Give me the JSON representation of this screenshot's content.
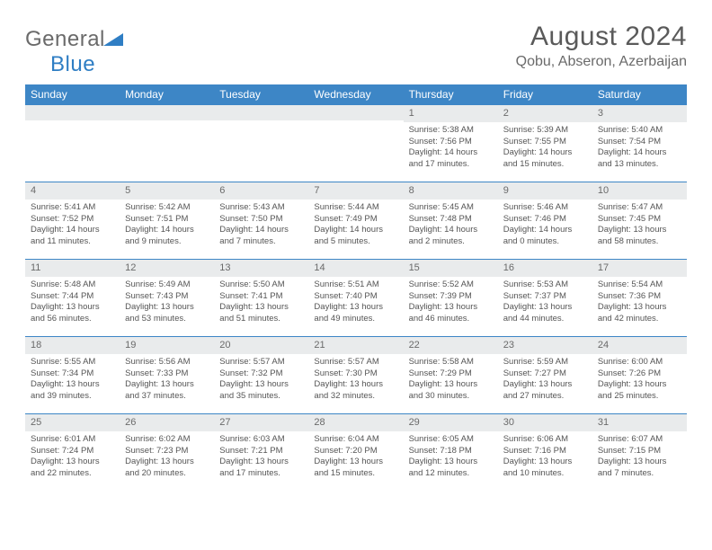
{
  "logo": {
    "text1": "General",
    "text2": "Blue"
  },
  "title": "August 2024",
  "location": "Qobu, Abseron, Azerbaijan",
  "colors": {
    "header_bg": "#3d86c6",
    "header_fg": "#ffffff",
    "daybar_bg": "#e9ebec",
    "text": "#555555",
    "logo_gray": "#6a6a6a",
    "logo_blue": "#2f7ec4"
  },
  "dayNames": [
    "Sunday",
    "Monday",
    "Tuesday",
    "Wednesday",
    "Thursday",
    "Friday",
    "Saturday"
  ],
  "weeks": [
    [
      null,
      null,
      null,
      null,
      {
        "n": "1",
        "sunrise": "5:38 AM",
        "sunset": "7:56 PM",
        "dl1": "Daylight: 14 hours",
        "dl2": "and 17 minutes."
      },
      {
        "n": "2",
        "sunrise": "5:39 AM",
        "sunset": "7:55 PM",
        "dl1": "Daylight: 14 hours",
        "dl2": "and 15 minutes."
      },
      {
        "n": "3",
        "sunrise": "5:40 AM",
        "sunset": "7:54 PM",
        "dl1": "Daylight: 14 hours",
        "dl2": "and 13 minutes."
      }
    ],
    [
      {
        "n": "4",
        "sunrise": "5:41 AM",
        "sunset": "7:52 PM",
        "dl1": "Daylight: 14 hours",
        "dl2": "and 11 minutes."
      },
      {
        "n": "5",
        "sunrise": "5:42 AM",
        "sunset": "7:51 PM",
        "dl1": "Daylight: 14 hours",
        "dl2": "and 9 minutes."
      },
      {
        "n": "6",
        "sunrise": "5:43 AM",
        "sunset": "7:50 PM",
        "dl1": "Daylight: 14 hours",
        "dl2": "and 7 minutes."
      },
      {
        "n": "7",
        "sunrise": "5:44 AM",
        "sunset": "7:49 PM",
        "dl1": "Daylight: 14 hours",
        "dl2": "and 5 minutes."
      },
      {
        "n": "8",
        "sunrise": "5:45 AM",
        "sunset": "7:48 PM",
        "dl1": "Daylight: 14 hours",
        "dl2": "and 2 minutes."
      },
      {
        "n": "9",
        "sunrise": "5:46 AM",
        "sunset": "7:46 PM",
        "dl1": "Daylight: 14 hours",
        "dl2": "and 0 minutes."
      },
      {
        "n": "10",
        "sunrise": "5:47 AM",
        "sunset": "7:45 PM",
        "dl1": "Daylight: 13 hours",
        "dl2": "and 58 minutes."
      }
    ],
    [
      {
        "n": "11",
        "sunrise": "5:48 AM",
        "sunset": "7:44 PM",
        "dl1": "Daylight: 13 hours",
        "dl2": "and 56 minutes."
      },
      {
        "n": "12",
        "sunrise": "5:49 AM",
        "sunset": "7:43 PM",
        "dl1": "Daylight: 13 hours",
        "dl2": "and 53 minutes."
      },
      {
        "n": "13",
        "sunrise": "5:50 AM",
        "sunset": "7:41 PM",
        "dl1": "Daylight: 13 hours",
        "dl2": "and 51 minutes."
      },
      {
        "n": "14",
        "sunrise": "5:51 AM",
        "sunset": "7:40 PM",
        "dl1": "Daylight: 13 hours",
        "dl2": "and 49 minutes."
      },
      {
        "n": "15",
        "sunrise": "5:52 AM",
        "sunset": "7:39 PM",
        "dl1": "Daylight: 13 hours",
        "dl2": "and 46 minutes."
      },
      {
        "n": "16",
        "sunrise": "5:53 AM",
        "sunset": "7:37 PM",
        "dl1": "Daylight: 13 hours",
        "dl2": "and 44 minutes."
      },
      {
        "n": "17",
        "sunrise": "5:54 AM",
        "sunset": "7:36 PM",
        "dl1": "Daylight: 13 hours",
        "dl2": "and 42 minutes."
      }
    ],
    [
      {
        "n": "18",
        "sunrise": "5:55 AM",
        "sunset": "7:34 PM",
        "dl1": "Daylight: 13 hours",
        "dl2": "and 39 minutes."
      },
      {
        "n": "19",
        "sunrise": "5:56 AM",
        "sunset": "7:33 PM",
        "dl1": "Daylight: 13 hours",
        "dl2": "and 37 minutes."
      },
      {
        "n": "20",
        "sunrise": "5:57 AM",
        "sunset": "7:32 PM",
        "dl1": "Daylight: 13 hours",
        "dl2": "and 35 minutes."
      },
      {
        "n": "21",
        "sunrise": "5:57 AM",
        "sunset": "7:30 PM",
        "dl1": "Daylight: 13 hours",
        "dl2": "and 32 minutes."
      },
      {
        "n": "22",
        "sunrise": "5:58 AM",
        "sunset": "7:29 PM",
        "dl1": "Daylight: 13 hours",
        "dl2": "and 30 minutes."
      },
      {
        "n": "23",
        "sunrise": "5:59 AM",
        "sunset": "7:27 PM",
        "dl1": "Daylight: 13 hours",
        "dl2": "and 27 minutes."
      },
      {
        "n": "24",
        "sunrise": "6:00 AM",
        "sunset": "7:26 PM",
        "dl1": "Daylight: 13 hours",
        "dl2": "and 25 minutes."
      }
    ],
    [
      {
        "n": "25",
        "sunrise": "6:01 AM",
        "sunset": "7:24 PM",
        "dl1": "Daylight: 13 hours",
        "dl2": "and 22 minutes."
      },
      {
        "n": "26",
        "sunrise": "6:02 AM",
        "sunset": "7:23 PM",
        "dl1": "Daylight: 13 hours",
        "dl2": "and 20 minutes."
      },
      {
        "n": "27",
        "sunrise": "6:03 AM",
        "sunset": "7:21 PM",
        "dl1": "Daylight: 13 hours",
        "dl2": "and 17 minutes."
      },
      {
        "n": "28",
        "sunrise": "6:04 AM",
        "sunset": "7:20 PM",
        "dl1": "Daylight: 13 hours",
        "dl2": "and 15 minutes."
      },
      {
        "n": "29",
        "sunrise": "6:05 AM",
        "sunset": "7:18 PM",
        "dl1": "Daylight: 13 hours",
        "dl2": "and 12 minutes."
      },
      {
        "n": "30",
        "sunrise": "6:06 AM",
        "sunset": "7:16 PM",
        "dl1": "Daylight: 13 hours",
        "dl2": "and 10 minutes."
      },
      {
        "n": "31",
        "sunrise": "6:07 AM",
        "sunset": "7:15 PM",
        "dl1": "Daylight: 13 hours",
        "dl2": "and 7 minutes."
      }
    ]
  ],
  "labels": {
    "sunrise": "Sunrise: ",
    "sunset": "Sunset: "
  }
}
